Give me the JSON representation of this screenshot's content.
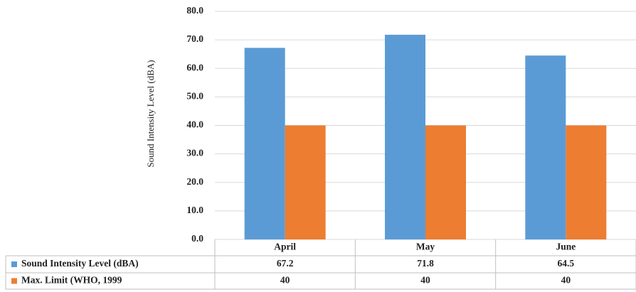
{
  "chart_data": {
    "type": "bar",
    "y_label": "Sound Intensity Level (dBA)",
    "categories": [
      "April",
      "May",
      "June"
    ],
    "series": [
      {
        "name": "Sound Intensity Level (dBA)",
        "color": "#5b9bd5",
        "values": [
          67.2,
          71.8,
          64.5
        ]
      },
      {
        "name": "Max. Limit (WHO, 1999",
        "color": "#ed7d31",
        "values": [
          40,
          40,
          40
        ]
      }
    ],
    "ylim": [
      0,
      80
    ],
    "yticks": [
      {
        "value": 0,
        "label": "0.0"
      },
      {
        "value": 10,
        "label": "10.0"
      },
      {
        "value": 20,
        "label": "20.0"
      },
      {
        "value": 30,
        "label": "30.0"
      },
      {
        "value": 40,
        "label": "40.0"
      },
      {
        "value": 50,
        "label": "50.0"
      },
      {
        "value": 60,
        "label": "60.0"
      },
      {
        "value": 70,
        "label": "70.0"
      },
      {
        "value": 80,
        "label": "80.0"
      }
    ],
    "grid": true
  }
}
